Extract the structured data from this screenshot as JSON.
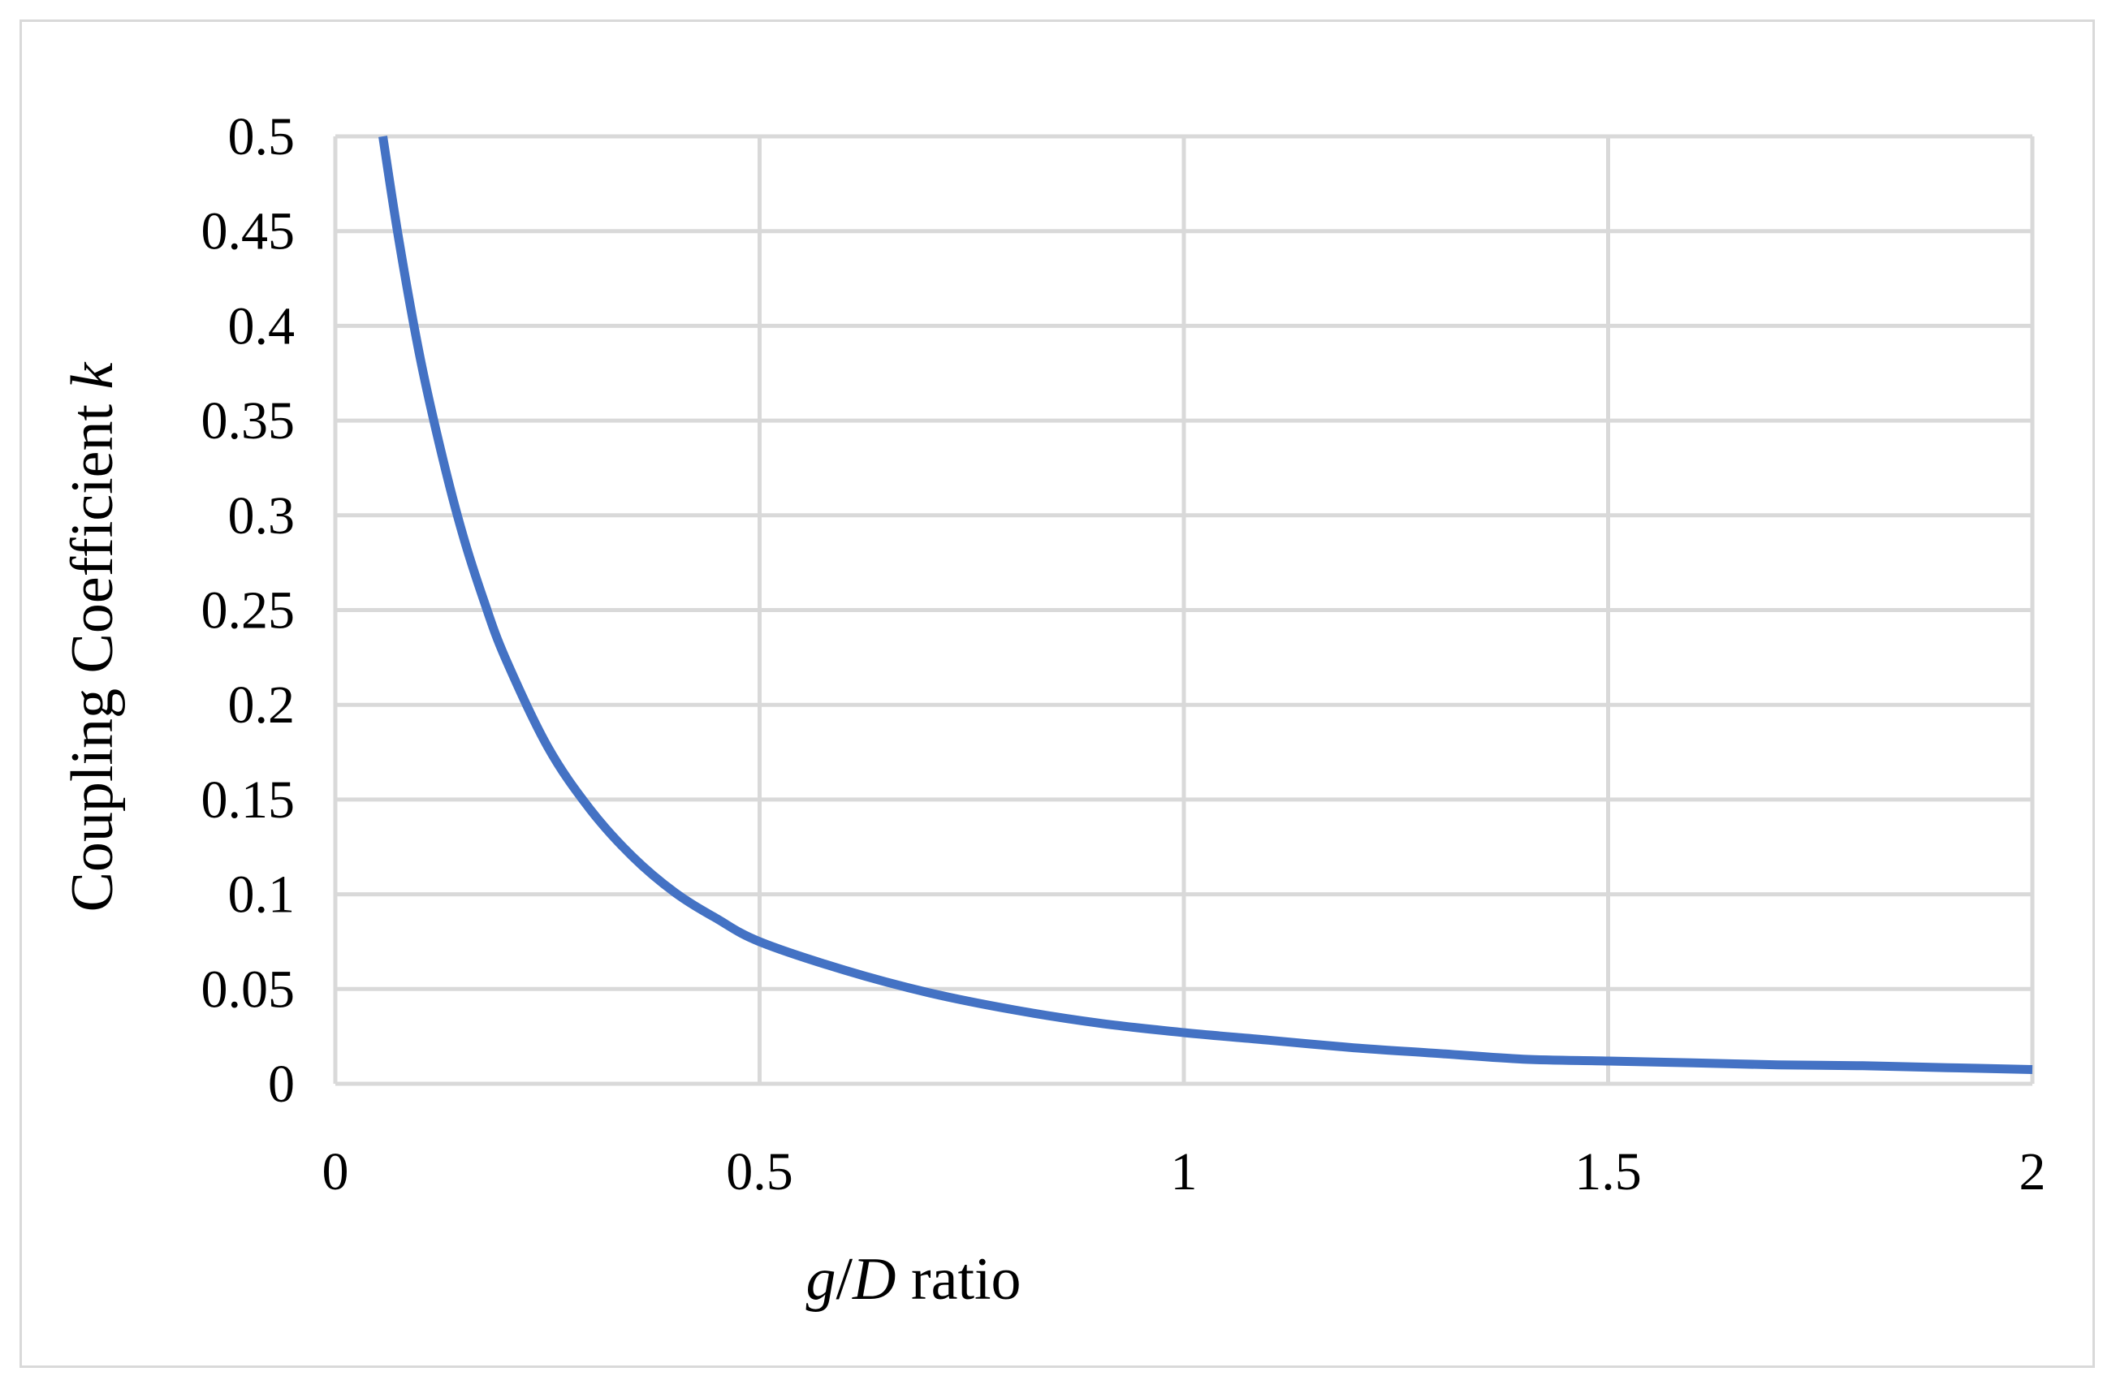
{
  "chart_data": {
    "type": "line",
    "title": "",
    "xlabel": "g/D ratio",
    "xlabel_parts": {
      "var1": "g",
      "sep": "/",
      "var2": "D",
      "rest": " ratio"
    },
    "ylabel": "Coupling Coefficient k",
    "ylabel_parts": {
      "text": "Coupling Coefficient ",
      "var": "k"
    },
    "xlim": [
      0,
      2
    ],
    "ylim": [
      0,
      0.5
    ],
    "x_ticks": [
      0,
      0.5,
      1,
      1.5,
      2
    ],
    "x_tick_labels": [
      "0",
      "0.5",
      "1",
      "1.5",
      "2"
    ],
    "y_ticks": [
      0,
      0.05,
      0.1,
      0.15,
      0.2,
      0.25,
      0.3,
      0.35,
      0.4,
      0.45,
      0.5
    ],
    "y_tick_labels": [
      "0",
      "0.05",
      "0.1",
      "0.15",
      "0.2",
      "0.25",
      "0.3",
      "0.35",
      "0.4",
      "0.45",
      "0.5"
    ],
    "grid": true,
    "legend": "none",
    "series": [
      {
        "color": "#4472c4",
        "x": [
          0.056,
          0.075,
          0.1,
          0.125,
          0.15,
          0.175,
          0.2,
          0.25,
          0.3,
          0.35,
          0.4,
          0.45,
          0.5,
          0.6,
          0.7,
          0.8,
          0.9,
          1.0,
          1.1,
          1.2,
          1.3,
          1.4,
          1.5,
          1.6,
          1.7,
          1.8,
          1.9,
          2.0
        ],
        "y": [
          0.5,
          0.445,
          0.383,
          0.333,
          0.29,
          0.255,
          0.225,
          0.178,
          0.145,
          0.12,
          0.101,
          0.087,
          0.075,
          0.06,
          0.048,
          0.039,
          0.032,
          0.027,
          0.023,
          0.019,
          0.016,
          0.013,
          0.012,
          0.011,
          0.01,
          0.0095,
          0.0085,
          0.0075
        ]
      }
    ]
  }
}
